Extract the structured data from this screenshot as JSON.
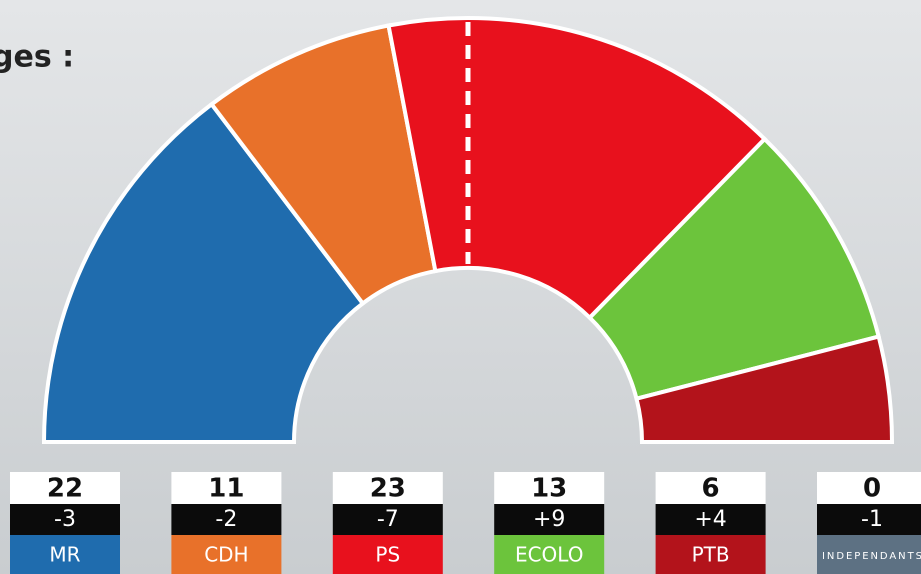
{
  "chart_data": {
    "type": "hemicycle",
    "title": "ges :",
    "categories": [
      "MR",
      "CDH",
      "PS",
      "ECOLO",
      "PTB",
      "INDEPENDANTS"
    ],
    "values": [
      22,
      11,
      23,
      13,
      6,
      0
    ],
    "changes": [
      "-3",
      "-2",
      "-7",
      "+9",
      "+4",
      "-1"
    ],
    "colors": [
      "#1f6cae",
      "#e8712a",
      "#e8111d",
      "#6cc43c",
      "#b3131b",
      "#5d7183"
    ]
  }
}
